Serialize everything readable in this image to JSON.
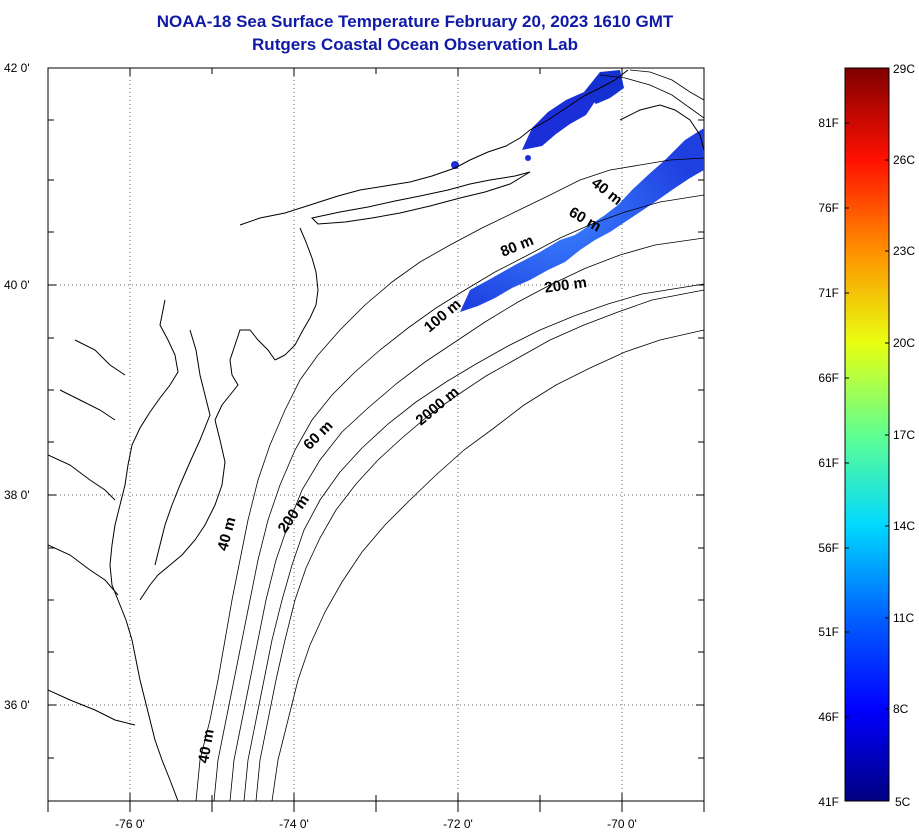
{
  "title": {
    "line1": "NOAA-18 Sea Surface Temperature February 20, 2023 1610 GMT",
    "line2": "Rutgers Coastal Ocean Observation Lab"
  },
  "map": {
    "lat_labels": [
      "42 0'",
      "40 0'",
      "38 0'",
      "36 0'"
    ],
    "lon_labels": [
      "-76 0'",
      "-74 0'",
      "-72 0'",
      "-70 0'"
    ],
    "contour_labels": [
      "40 m",
      "60 m",
      "80 m",
      "100 m",
      "200 m",
      "2000 m",
      "60 m",
      "200 m",
      "40 m",
      "40 m"
    ]
  },
  "colorbar": {
    "celsius_labels": [
      "29C",
      "26C",
      "23C",
      "20C",
      "17C",
      "14C",
      "11C",
      "8C",
      "5C"
    ],
    "fahrenheit_labels": [
      "81F",
      "76F",
      "71F",
      "66F",
      "61F",
      "56F",
      "51F",
      "46F",
      "41F"
    ],
    "colors": [
      "#000080",
      "#0000ff",
      "#0080ff",
      "#00ffff",
      "#80ff80",
      "#ffff00",
      "#ff8000",
      "#ff0000",
      "#800000"
    ]
  }
}
